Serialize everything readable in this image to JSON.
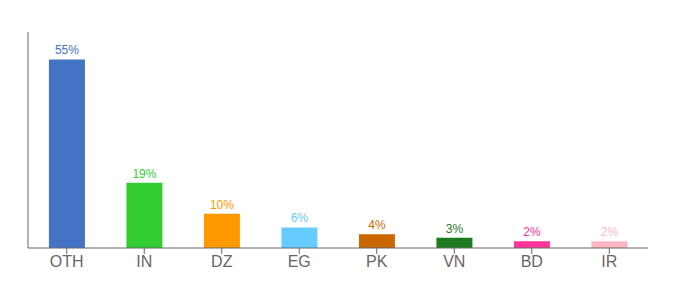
{
  "chart_data": {
    "type": "bar",
    "categories": [
      "OTH",
      "IN",
      "DZ",
      "EG",
      "PK",
      "VN",
      "BD",
      "IR"
    ],
    "values": [
      55,
      19,
      10,
      6,
      4,
      3,
      2,
      2
    ],
    "value_labels": [
      "55%",
      "19%",
      "10%",
      "6%",
      "4%",
      "3%",
      "2%",
      "2%"
    ],
    "colors": [
      "#4472C4",
      "#33CC33",
      "#FF9900",
      "#66CCFF",
      "#CC6600",
      "#1E7A1E",
      "#FF3399",
      "#FFB6C1"
    ],
    "ylim": [
      0,
      63
    ],
    "data_labels": true,
    "tick_labels": "x"
  }
}
